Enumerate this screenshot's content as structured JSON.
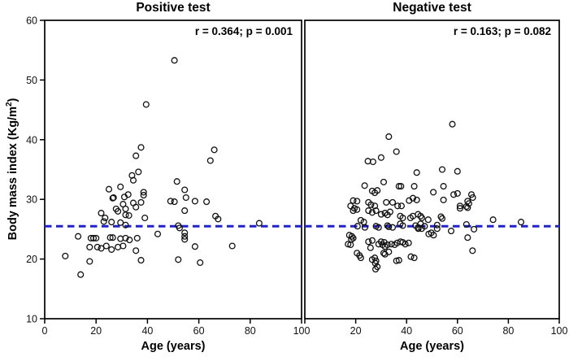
{
  "figure": {
    "ylabel_main": "Body mass index (Kg/m",
    "ylabel_sup": "2",
    "ylabel_close": ")",
    "reference_line_color": "#2222cc",
    "point_stroke_color": "#111111"
  },
  "chart_data": [
    {
      "type": "scatter",
      "title": "Positive test",
      "annotation": "r = 0.364; p = 0.001",
      "xlabel": "Age (years)",
      "ylabel": "Body mass index (Kg/m2)",
      "xlim": [
        0,
        100
      ],
      "ylim": [
        10,
        60
      ],
      "xticks": [
        0,
        20,
        40,
        60,
        80,
        100
      ],
      "xtick_labels": [
        "0",
        "20",
        "40",
        "60",
        "80",
        "100"
      ],
      "yticks": [
        10,
        20,
        30,
        40,
        50,
        60
      ],
      "ytick_labels": [
        "10",
        "20",
        "30",
        "40",
        "50",
        "60"
      ],
      "grid": false,
      "reference_line": {
        "y": 25.5,
        "style": "dashed",
        "color": "#2222cc"
      },
      "points": [
        [
          50.5,
          53.3
        ],
        [
          39.5,
          45.9
        ],
        [
          37.5,
          38.7
        ],
        [
          35.5,
          37.3
        ],
        [
          66,
          38.3
        ],
        [
          64.5,
          36.5
        ],
        [
          36.5,
          34.6
        ],
        [
          34,
          34.0
        ],
        [
          34.5,
          33.2
        ],
        [
          51.5,
          33.0
        ],
        [
          29.5,
          32.1
        ],
        [
          25,
          31.7
        ],
        [
          54.5,
          31.6
        ],
        [
          55,
          30.3
        ],
        [
          26.5,
          30.2
        ],
        [
          38.5,
          31.2
        ],
        [
          38.5,
          30.7
        ],
        [
          31,
          30.4
        ],
        [
          26.8,
          30.3
        ],
        [
          32.5,
          30.8
        ],
        [
          34.5,
          29.4
        ],
        [
          30.5,
          29.2
        ],
        [
          37.5,
          29.5
        ],
        [
          49,
          29.7
        ],
        [
          50.5,
          29.6
        ],
        [
          58.5,
          29.7
        ],
        [
          63,
          29.6
        ],
        [
          31.5,
          28.4
        ],
        [
          27.8,
          28.4
        ],
        [
          28.5,
          28.0
        ],
        [
          54.5,
          28.1
        ],
        [
          35.5,
          28.7
        ],
        [
          22,
          27.7
        ],
        [
          23.5,
          26.9
        ],
        [
          23,
          26.3
        ],
        [
          39,
          26.9
        ],
        [
          32.8,
          27.3
        ],
        [
          31.5,
          27.4
        ],
        [
          66.5,
          27.2
        ],
        [
          67.5,
          26.7
        ],
        [
          26,
          26.2
        ],
        [
          29.5,
          26.1
        ],
        [
          31.5,
          25.7
        ],
        [
          83.5,
          26.0
        ],
        [
          52,
          25.6
        ],
        [
          52.5,
          25.2
        ],
        [
          13,
          23.8
        ],
        [
          18,
          23.5
        ],
        [
          19,
          23.5
        ],
        [
          20,
          23.5
        ],
        [
          25.5,
          23.6
        ],
        [
          26.5,
          23.6
        ],
        [
          29.5,
          23.4
        ],
        [
          31.5,
          23.5
        ],
        [
          33,
          23.2
        ],
        [
          36,
          23.5
        ],
        [
          44,
          24.2
        ],
        [
          17.5,
          22.0
        ],
        [
          20.5,
          22.0
        ],
        [
          22,
          21.8
        ],
        [
          24,
          22.2
        ],
        [
          26,
          21.6
        ],
        [
          28.5,
          22.0
        ],
        [
          30.5,
          22.2
        ],
        [
          35.5,
          21.4
        ],
        [
          54.5,
          24.4
        ],
        [
          54.5,
          23.8
        ],
        [
          54.5,
          23.3
        ],
        [
          58.5,
          22.1
        ],
        [
          73,
          22.2
        ],
        [
          8,
          20.5
        ],
        [
          17.5,
          19.6
        ],
        [
          37.5,
          19.8
        ],
        [
          52,
          19.9
        ],
        [
          60.5,
          19.4
        ],
        [
          14,
          17.4
        ]
      ]
    },
    {
      "type": "scatter",
      "title": "Negative test",
      "annotation": "r = 0.163; p = 0.082",
      "xlabel": "Age (years)",
      "ylabel": "Body mass index (Kg/m2)",
      "xlim": [
        0,
        100
      ],
      "ylim": [
        10,
        60
      ],
      "xticks": [
        0,
        20,
        40,
        60,
        80,
        100
      ],
      "xtick_labels": [
        "",
        "20",
        "40",
        "60",
        "80",
        "100"
      ],
      "yticks": [
        10,
        20,
        30,
        40,
        50,
        60
      ],
      "ytick_labels": [],
      "grid": false,
      "reference_line": {
        "y": 25.5,
        "style": "dashed",
        "color": "#2222cc"
      },
      "points": [
        [
          58,
          42.6
        ],
        [
          33,
          40.5
        ],
        [
          36,
          38.0
        ],
        [
          24.8,
          36.4
        ],
        [
          26.8,
          36.3
        ],
        [
          30,
          37.0
        ],
        [
          44,
          34.5
        ],
        [
          54,
          35.0
        ],
        [
          60,
          34.7
        ],
        [
          23.5,
          32.3
        ],
        [
          26.5,
          31.4
        ],
        [
          27.5,
          31.1
        ],
        [
          28.5,
          31.5
        ],
        [
          31,
          32.9
        ],
        [
          37,
          32.2
        ],
        [
          37.8,
          32.2
        ],
        [
          43,
          32.2
        ],
        [
          50.5,
          31.2
        ],
        [
          54.5,
          32.2
        ],
        [
          54.5,
          29.9
        ],
        [
          58.5,
          30.8
        ],
        [
          60,
          31.0
        ],
        [
          65.5,
          30.8
        ],
        [
          66,
          30.3
        ],
        [
          64,
          29.7
        ],
        [
          64.5,
          29.3
        ],
        [
          61,
          28.9
        ],
        [
          61,
          28.5
        ],
        [
          63.5,
          28.8
        ],
        [
          64,
          28.6
        ],
        [
          19,
          29.8
        ],
        [
          20.5,
          29.7
        ],
        [
          18,
          28.9
        ],
        [
          19.5,
          28.5
        ],
        [
          19,
          28.1
        ],
        [
          20.5,
          28.3
        ],
        [
          25,
          29.5
        ],
        [
          26,
          29.1
        ],
        [
          27.5,
          28.9
        ],
        [
          32,
          29.5
        ],
        [
          34.5,
          29.5
        ],
        [
          36.5,
          28.9
        ],
        [
          38,
          28.9
        ],
        [
          41,
          29.8
        ],
        [
          42.5,
          30.2
        ],
        [
          44,
          29.9
        ],
        [
          25,
          28.1
        ],
        [
          26.5,
          27.8
        ],
        [
          28,
          28.1
        ],
        [
          30,
          27.5
        ],
        [
          31.5,
          27.7
        ],
        [
          32.5,
          27.4
        ],
        [
          33.5,
          27.9
        ],
        [
          37.5,
          27.2
        ],
        [
          38.5,
          26.9
        ],
        [
          41.5,
          26.9
        ],
        [
          42.5,
          27.2
        ],
        [
          44.5,
          27.5
        ],
        [
          45.5,
          27.2
        ],
        [
          46,
          26.9
        ],
        [
          48.5,
          26.6
        ],
        [
          53.5,
          27.1
        ],
        [
          54,
          26.8
        ],
        [
          74,
          26.6
        ],
        [
          85,
          26.2
        ],
        [
          22,
          26.5
        ],
        [
          23.2,
          26.2
        ],
        [
          20.7,
          25.5
        ],
        [
          23.6,
          25.3
        ],
        [
          28,
          25.5
        ],
        [
          29,
          25.3
        ],
        [
          32.5,
          25.6
        ],
        [
          33,
          25.4
        ],
        [
          34.5,
          25.3
        ],
        [
          37.5,
          25.9
        ],
        [
          38.5,
          25.6
        ],
        [
          43.5,
          25.6
        ],
        [
          44.5,
          25.3
        ],
        [
          45.5,
          25.9
        ],
        [
          47.1,
          25.5
        ],
        [
          52,
          25.7
        ],
        [
          52,
          25.1
        ],
        [
          57.5,
          24.7
        ],
        [
          63.5,
          25.8
        ],
        [
          66.5,
          25.0
        ],
        [
          64,
          23.6
        ],
        [
          17.5,
          24.0
        ],
        [
          18.5,
          23.8
        ],
        [
          19,
          23.5
        ],
        [
          18.3,
          23.3
        ],
        [
          17,
          22.5
        ],
        [
          18,
          22.4
        ],
        [
          20.5,
          21.0
        ],
        [
          21.5,
          20.6
        ],
        [
          22,
          20.2
        ],
        [
          25,
          22.9
        ],
        [
          26.5,
          23.1
        ],
        [
          25.8,
          21.9
        ],
        [
          26.5,
          19.9
        ],
        [
          27.5,
          20.2
        ],
        [
          28,
          19.7
        ],
        [
          27.7,
          19.3
        ],
        [
          28.5,
          18.7
        ],
        [
          27.8,
          18.3
        ],
        [
          29,
          22.5
        ],
        [
          30,
          22.9
        ],
        [
          31.2,
          22.8
        ],
        [
          30.5,
          22.4
        ],
        [
          31.5,
          22.1
        ],
        [
          32.5,
          22.4
        ],
        [
          31,
          21.0
        ],
        [
          31.5,
          20.8
        ],
        [
          33,
          21.2
        ],
        [
          34,
          22.5
        ],
        [
          35.3,
          22.4
        ],
        [
          36.3,
          22.7
        ],
        [
          37.6,
          22.9
        ],
        [
          36,
          19.7
        ],
        [
          37,
          19.8
        ],
        [
          38.5,
          22.8
        ],
        [
          39.5,
          22.5
        ],
        [
          40.8,
          22.7
        ],
        [
          41.7,
          20.4
        ],
        [
          43,
          20.2
        ],
        [
          48.7,
          24.2
        ],
        [
          49.7,
          24.4
        ],
        [
          50.6,
          24.0
        ],
        [
          44.6,
          25.1
        ],
        [
          45.9,
          25.1
        ],
        [
          65.9,
          21.4
        ]
      ]
    }
  ]
}
